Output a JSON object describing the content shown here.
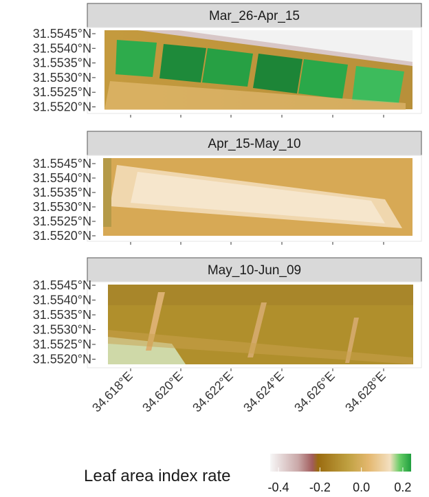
{
  "panels": [
    {
      "title": "Mar_26-Apr_15"
    },
    {
      "title": "Apr_15-May_10"
    },
    {
      "title": "May_10-Jun_09"
    }
  ],
  "y_tick_labels": [
    "31.5545°N",
    "31.5540°N",
    "31.5535°N",
    "31.5530°N",
    "31.5525°N",
    "31.5520°N"
  ],
  "x_tick_labels": [
    "34.618°E",
    "34.620°E",
    "34.622°E",
    "34.624°E",
    "34.626°E",
    "34.628°E"
  ],
  "legend": {
    "title": "Leaf area index rate",
    "lim": [
      -0.44,
      0.24
    ],
    "ticks": [
      -0.4,
      -0.2,
      {
        "value": 0,
        "label": "0.0"
      },
      0.2
    ]
  }
}
